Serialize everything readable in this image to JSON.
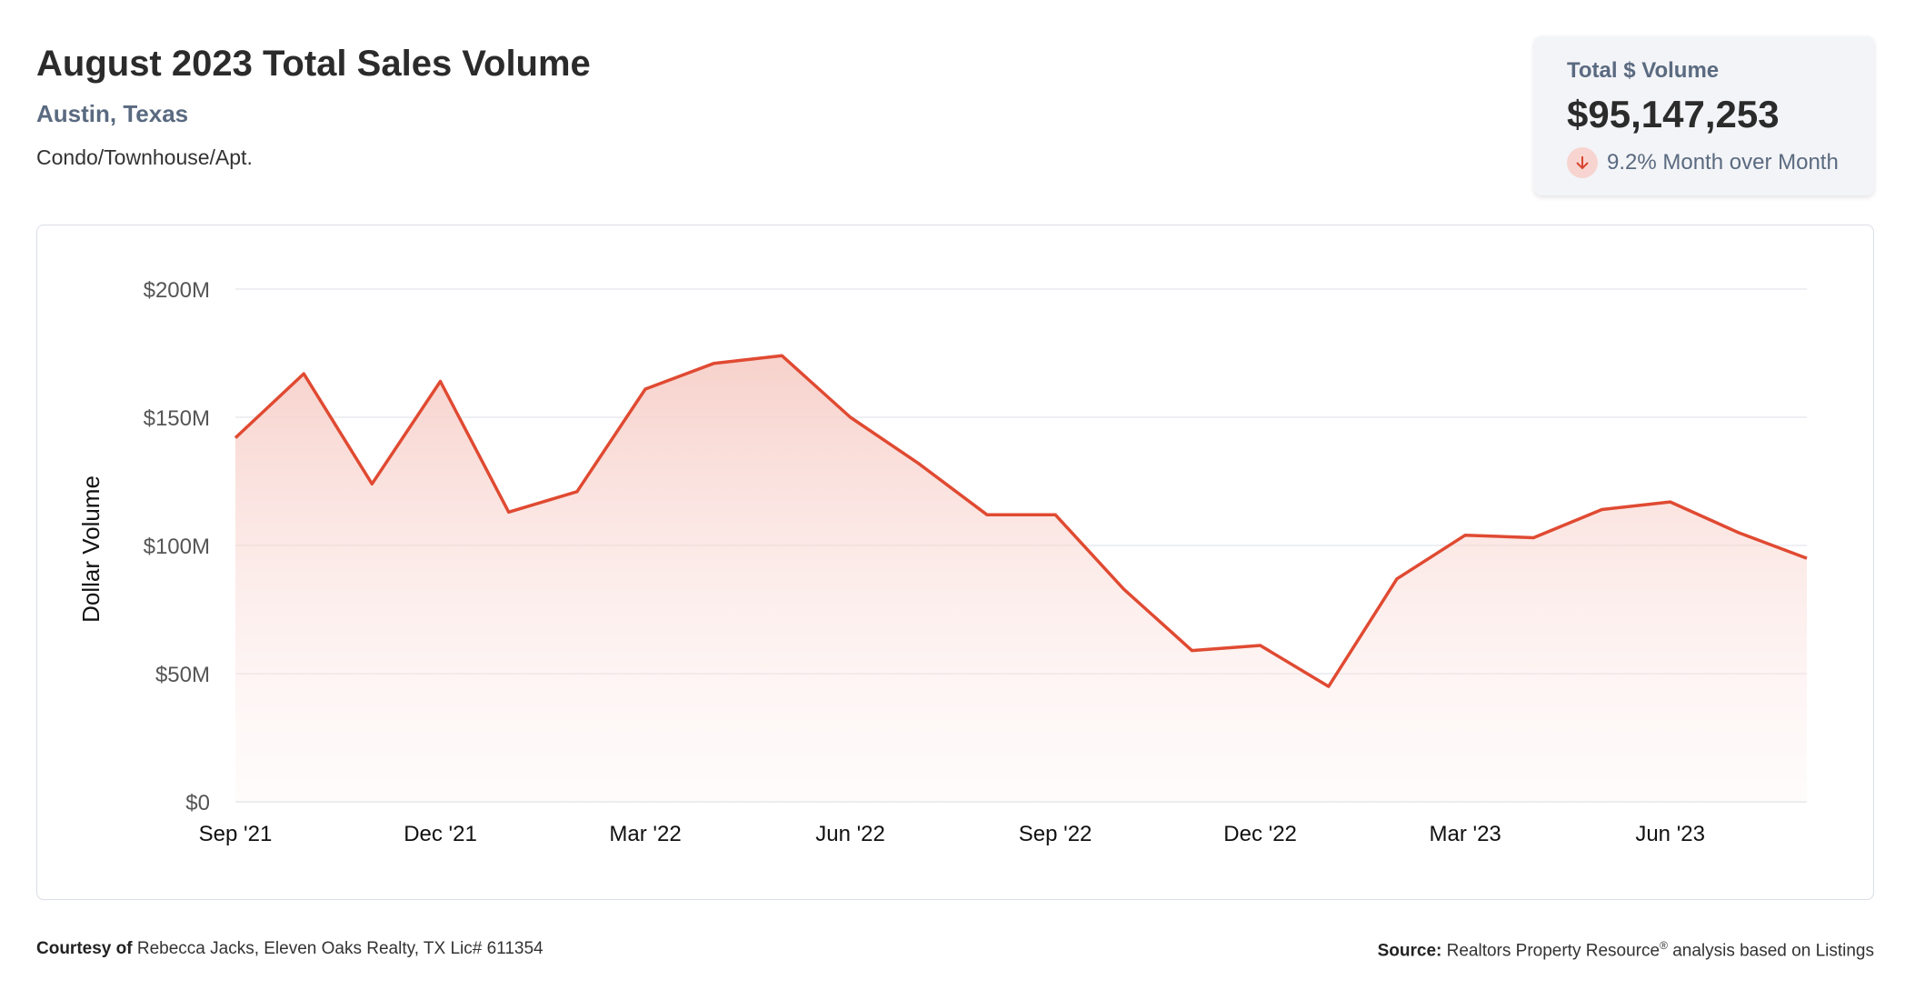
{
  "header": {
    "title": "August 2023 Total Sales Volume",
    "location": "Austin, Texas",
    "property_type": "Condo/Townhouse/Apt."
  },
  "summary": {
    "label": "Total $ Volume",
    "value": "$95,147,253",
    "change_icon": "arrow-down-icon",
    "change_text": "9.2% Month over Month"
  },
  "colors": {
    "line": "#e04a32",
    "fill_top": "#f6c9c2",
    "grid": "#e3e5ea",
    "accent_text": "#5a6a80"
  },
  "footer": {
    "courtesy_label": "Courtesy of",
    "courtesy_text": "Rebecca Jacks, Eleven Oaks Realty, TX Lic# 611354",
    "source_label": "Source:",
    "source_text_1": "Realtors Property Resource",
    "source_reg": "®",
    "source_text_2": "analysis based on Listings"
  },
  "chart_data": {
    "type": "area",
    "title": "August 2023 Total Sales Volume",
    "xlabel": "",
    "ylabel": "Dollar Volume",
    "ylim": [
      0,
      200
    ],
    "y_unit": "$M",
    "y_ticks": [
      0,
      50,
      100,
      150,
      200
    ],
    "y_tick_labels": [
      "$0",
      "$50M",
      "$100M",
      "$150M",
      "$200M"
    ],
    "x_tick_labels": [
      "Sep '21",
      "Dec '21",
      "Mar '22",
      "Jun '22",
      "Sep '22",
      "Dec '22",
      "Mar '23",
      "Jun '23"
    ],
    "x_tick_indices": [
      0,
      3,
      6,
      9,
      12,
      15,
      18,
      21
    ],
    "grid": true,
    "series": [
      {
        "name": "Total Sales Volume",
        "x": [
          "Sep '21",
          "Oct '21",
          "Nov '21",
          "Dec '21",
          "Jan '22",
          "Feb '22",
          "Mar '22",
          "Apr '22",
          "May '22",
          "Jun '22",
          "Jul '22",
          "Aug '22",
          "Sep '22",
          "Oct '22",
          "Nov '22",
          "Dec '22",
          "Jan '23",
          "Feb '23",
          "Mar '23",
          "Apr '23",
          "May '23",
          "Jun '23",
          "Jul '23",
          "Aug '23"
        ],
        "values": [
          142,
          167,
          124,
          164,
          113,
          121,
          161,
          171,
          174,
          150,
          132,
          112,
          112,
          83,
          59,
          61,
          45,
          87,
          104,
          103,
          114,
          117,
          105,
          95
        ]
      }
    ]
  }
}
